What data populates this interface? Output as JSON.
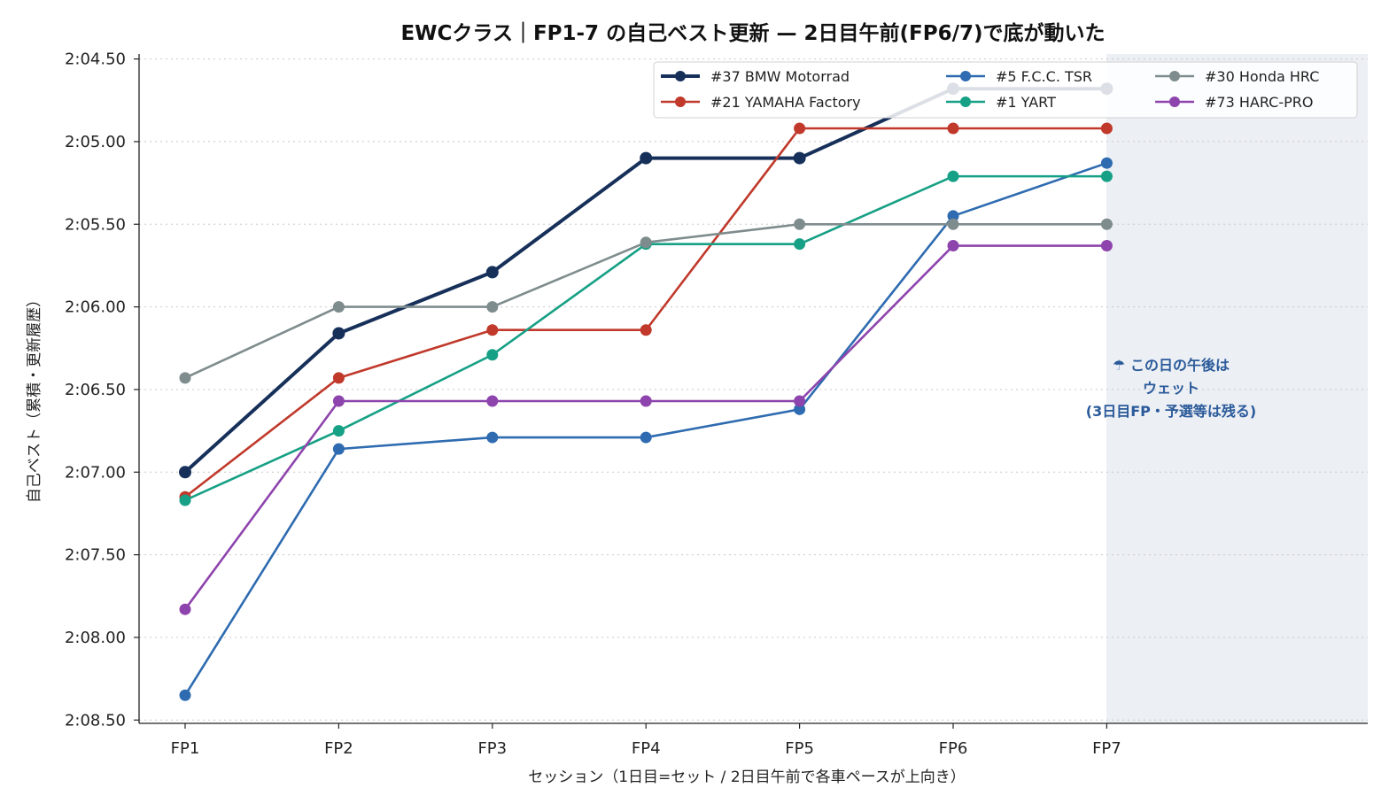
{
  "chart_data": {
    "type": "line",
    "title": "EWCクラス｜FP1-7 の自己ベスト更新 — 2日目午前(FP6/7)で底が動いた",
    "xlabel": "セッション（1日目=セット / 2日目午前で各車ペースが上向き）",
    "ylabel": "自己ベスト（累積・更新履歴）",
    "categories": [
      "FP1",
      "FP2",
      "FP3",
      "FP4",
      "FP5",
      "FP6",
      "FP7"
    ],
    "y_ticks": [
      "2:04.50",
      "2:05.00",
      "2:05.50",
      "2:06.00",
      "2:06.50",
      "2:07.00",
      "2:07.50",
      "2:08.00",
      "2:08.50"
    ],
    "y_tick_seconds": [
      124.5,
      125.0,
      125.5,
      126.0,
      126.5,
      127.0,
      127.5,
      128.0,
      128.5
    ],
    "ylim_seconds": [
      128.52,
      124.47
    ],
    "y_inverted": true,
    "grid": "horizontal-dotted",
    "legend_position": "top-right",
    "shaded_region": {
      "from_category": "FP7",
      "to": "end",
      "color": "#eaedf3"
    },
    "annotation": [
      "☂ この日の午後は",
      "ウェット",
      "(3日目FP・予選等は残る)"
    ],
    "series": [
      {
        "name": "#37 BMW Motorrad",
        "color": "#16305a",
        "bold": true,
        "values": [
          127.0,
          126.16,
          125.79,
          125.1,
          125.1,
          124.68,
          124.68
        ]
      },
      {
        "name": "#21 YAMAHA Factory",
        "color": "#c0392b",
        "bold": false,
        "values": [
          127.15,
          126.43,
          126.14,
          126.14,
          124.92,
          124.92,
          124.92
        ]
      },
      {
        "name": "#5 F.C.C. TSR",
        "color": "#2e6bb0",
        "bold": false,
        "values": [
          128.35,
          126.86,
          126.79,
          126.79,
          126.62,
          125.45,
          125.13
        ]
      },
      {
        "name": "#1 YART",
        "color": "#16a085",
        "bold": false,
        "values": [
          127.17,
          126.75,
          126.29,
          125.62,
          125.62,
          125.21,
          125.21
        ]
      },
      {
        "name": "#30 Honda HRC",
        "color": "#7f8c8d",
        "bold": false,
        "values": [
          126.43,
          126.0,
          126.0,
          125.61,
          125.5,
          125.5,
          125.5
        ]
      },
      {
        "name": "#73 HARC-PRO",
        "color": "#8e44ad",
        "bold": false,
        "values": [
          127.83,
          126.57,
          126.57,
          126.57,
          126.57,
          125.63,
          125.63
        ]
      }
    ]
  }
}
